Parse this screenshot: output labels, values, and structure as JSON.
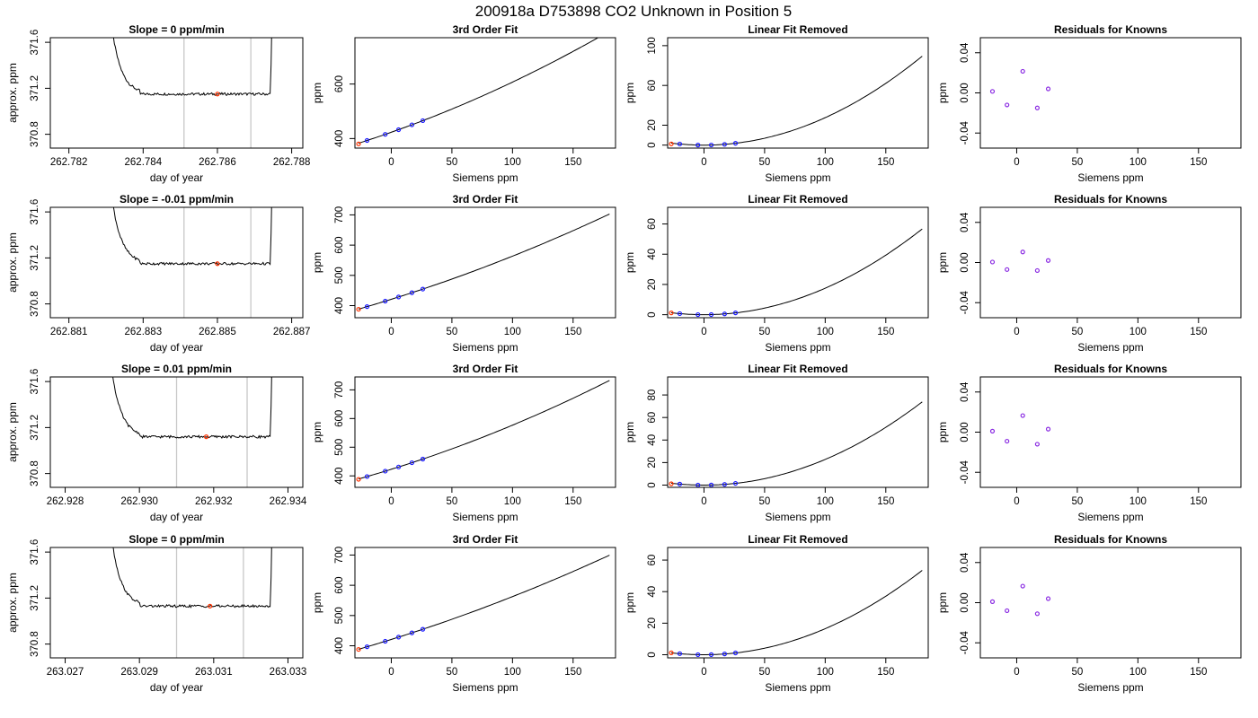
{
  "page_title": "200918a      D753898    CO2 Unknown in Position  5",
  "colors": {
    "known_points": "#1a1aff",
    "unknown_point": "#ff3300",
    "residual_points": "#8a2be2",
    "guide_lines": "#c8c8c8",
    "curve": "#000000"
  },
  "chart_data": [
    {
      "type": "line",
      "row": 1,
      "col": 1,
      "title": "Slope =  0  ppm/min",
      "xlabel": "day of year",
      "ylabel": "approx. ppm",
      "xlim": [
        262.7815,
        262.7883
      ],
      "ylim": [
        370.68,
        371.64
      ],
      "xticks": [
        262.782,
        262.784,
        262.786,
        262.788
      ],
      "xtick_labels": [
        "262.782",
        "262.784",
        "262.786",
        "262.788"
      ],
      "yticks": [
        370.8,
        371.2,
        371.6
      ],
      "ytick_labels": [
        "370.8",
        "371.2",
        "371.6"
      ],
      "data_start": 262.7829,
      "data_end": 262.7875,
      "baseline": 371.15,
      "vlines": [
        262.7851,
        262.7869
      ],
      "marker": {
        "x": 262.786,
        "y": 371.15
      }
    },
    {
      "type": "line",
      "row": 1,
      "col": 2,
      "title": "3rd Order Fit",
      "xlabel": "Siemens ppm",
      "ylabel": "ppm",
      "xlim": [
        -30,
        185
      ],
      "ylim": [
        365,
        770
      ],
      "xticks": [
        0,
        50,
        100,
        150
      ],
      "xtick_labels": [
        "0",
        "50",
        "100",
        "150"
      ],
      "yticks": [
        400,
        600
      ],
      "ytick_labels": [
        "400",
        "600"
      ],
      "fit": {
        "c0": 423.1,
        "c1": 1.563,
        "c2": 0.00276
      },
      "known_x": [
        -20,
        -5,
        6,
        17,
        26
      ],
      "unknown": {
        "x": -27,
        "y": 380.5
      }
    },
    {
      "type": "line",
      "row": 1,
      "col": 3,
      "title": "Linear Fit Removed",
      "xlabel": "Siemens ppm",
      "ylabel": "ppm",
      "xlim": [
        -30,
        185
      ],
      "ylim": [
        -3,
        108
      ],
      "xticks": [
        0,
        50,
        100,
        150
      ],
      "xtick_labels": [
        "0",
        "50",
        "100",
        "150"
      ],
      "yticks": [
        0,
        20,
        60,
        100
      ],
      "ytick_labels": [
        "0",
        "20",
        "60",
        "100"
      ],
      "quad": 0.00276,
      "known_x": [
        -20,
        -5,
        6,
        17,
        26
      ],
      "unknown": {
        "x": -27,
        "y": 1.2
      }
    },
    {
      "type": "scatter",
      "row": 1,
      "col": 4,
      "title": "Residuals for Knowns",
      "xlabel": "Siemens ppm",
      "ylabel": "ppm",
      "xlim": [
        -30,
        185
      ],
      "ylim": [
        -0.055,
        0.055
      ],
      "xticks": [
        0,
        50,
        100,
        150
      ],
      "xtick_labels": [
        "0",
        "50",
        "100",
        "150"
      ],
      "yticks": [
        -0.04,
        0.0,
        0.04
      ],
      "ytick_labels": [
        "-0.04",
        "0.00",
        "0.04"
      ],
      "points": [
        [
          -20,
          0.0015
        ],
        [
          -8,
          -0.012
        ],
        [
          5,
          0.0215
        ],
        [
          17,
          -0.015
        ],
        [
          26,
          0.004
        ]
      ]
    },
    {
      "type": "line",
      "row": 2,
      "col": 1,
      "title": "Slope =  -0.01  ppm/min",
      "xlabel": "day of year",
      "ylabel": "approx. ppm",
      "xlim": [
        262.8805,
        262.8873
      ],
      "ylim": [
        370.68,
        371.64
      ],
      "xticks": [
        262.881,
        262.883,
        262.885,
        262.887
      ],
      "xtick_labels": [
        "262.881",
        "262.883",
        "262.885",
        "262.887"
      ],
      "yticks": [
        370.8,
        371.2,
        371.6
      ],
      "ytick_labels": [
        "370.8",
        "371.2",
        "371.6"
      ],
      "data_start": 262.8819,
      "data_end": 262.8865,
      "baseline": 371.15,
      "vlines": [
        262.8841,
        262.8859
      ],
      "marker": {
        "x": 262.885,
        "y": 371.15
      }
    },
    {
      "type": "line",
      "row": 2,
      "col": 2,
      "title": "3rd Order Fit",
      "xlabel": "Siemens ppm",
      "ylabel": "ppm",
      "xlim": [
        -30,
        185
      ],
      "ylim": [
        360,
        725
      ],
      "xticks": [
        0,
        50,
        100,
        150
      ],
      "xtick_labels": [
        "0",
        "50",
        "100",
        "150"
      ],
      "yticks": [
        400,
        500,
        600,
        700
      ],
      "ytick_labels": [
        "400",
        "500",
        "600",
        "700"
      ],
      "fit": {
        "c0": 421.0,
        "c1": 1.25,
        "c2": 0.00175
      },
      "known_x": [
        -20,
        -5,
        6,
        17,
        26
      ],
      "unknown": {
        "x": -27,
        "y": 388.0
      }
    },
    {
      "type": "line",
      "row": 2,
      "col": 3,
      "title": "Linear Fit Removed",
      "xlabel": "Siemens ppm",
      "ylabel": "ppm",
      "xlim": [
        -30,
        185
      ],
      "ylim": [
        -2,
        71
      ],
      "xticks": [
        0,
        50,
        100,
        150
      ],
      "xtick_labels": [
        "0",
        "50",
        "100",
        "150"
      ],
      "yticks": [
        0,
        20,
        40,
        60
      ],
      "ytick_labels": [
        "0",
        "20",
        "40",
        "60"
      ],
      "quad": 0.00175,
      "known_x": [
        -20,
        -5,
        6,
        17,
        26
      ],
      "unknown": {
        "x": -27,
        "y": 1.2
      }
    },
    {
      "type": "scatter",
      "row": 2,
      "col": 4,
      "title": "Residuals for Knowns",
      "xlabel": "Siemens ppm",
      "ylabel": "ppm",
      "xlim": [
        -30,
        185
      ],
      "ylim": [
        -0.055,
        0.055
      ],
      "xticks": [
        0,
        50,
        100,
        150
      ],
      "xtick_labels": [
        "0",
        "50",
        "100",
        "150"
      ],
      "yticks": [
        -0.04,
        0.0,
        0.04
      ],
      "ytick_labels": [
        "-0.04",
        "0.00",
        "0.04"
      ],
      "points": [
        [
          -20,
          0.0005
        ],
        [
          -8,
          -0.007
        ],
        [
          5,
          0.0105
        ],
        [
          17,
          -0.008
        ],
        [
          26,
          0.002
        ]
      ]
    },
    {
      "type": "line",
      "row": 3,
      "col": 1,
      "title": "Slope =  0.01  ppm/min",
      "xlabel": "day of year",
      "ylabel": "approx. ppm",
      "xlim": [
        262.9276,
        262.9344
      ],
      "ylim": [
        370.68,
        371.64
      ],
      "xticks": [
        262.928,
        262.93,
        262.932,
        262.934
      ],
      "xtick_labels": [
        "262.928",
        "262.930",
        "262.932",
        "262.934"
      ],
      "yticks": [
        370.8,
        371.2,
        371.6
      ],
      "ytick_labels": [
        "370.8",
        "371.2",
        "371.6"
      ],
      "data_start": 262.929,
      "data_end": 262.9336,
      "baseline": 371.12,
      "vlines": [
        262.931,
        262.9329
      ],
      "marker": {
        "x": 262.9318,
        "y": 371.12
      }
    },
    {
      "type": "line",
      "row": 3,
      "col": 2,
      "title": "3rd Order Fit",
      "xlabel": "Siemens ppm",
      "ylabel": "ppm",
      "xlim": [
        -30,
        185
      ],
      "ylim": [
        360,
        745
      ],
      "xticks": [
        0,
        50,
        100,
        150
      ],
      "xtick_labels": [
        "0",
        "50",
        "100",
        "150"
      ],
      "yticks": [
        400,
        500,
        600,
        700
      ],
      "ytick_labels": [
        "400",
        "500",
        "600",
        "700"
      ],
      "fit": {
        "c0": 423.0,
        "c1": 1.31,
        "c2": 0.00228
      },
      "known_x": [
        -20,
        -5,
        6,
        17,
        26
      ],
      "unknown": {
        "x": -27,
        "y": 388.0
      }
    },
    {
      "type": "line",
      "row": 3,
      "col": 3,
      "title": "Linear Fit Removed",
      "xlabel": "Siemens ppm",
      "ylabel": "ppm",
      "xlim": [
        -30,
        185
      ],
      "ylim": [
        -2,
        96
      ],
      "xticks": [
        0,
        50,
        100,
        150
      ],
      "xtick_labels": [
        "0",
        "50",
        "100",
        "150"
      ],
      "yticks": [
        0,
        20,
        40,
        60,
        80
      ],
      "ytick_labels": [
        "0",
        "20",
        "40",
        "60",
        "80"
      ],
      "quad": 0.00228,
      "known_x": [
        -20,
        -5,
        6,
        17,
        26
      ],
      "unknown": {
        "x": -27,
        "y": 1.2
      }
    },
    {
      "type": "scatter",
      "row": 3,
      "col": 4,
      "title": "Residuals for Knowns",
      "xlabel": "Siemens ppm",
      "ylabel": "ppm",
      "xlim": [
        -30,
        185
      ],
      "ylim": [
        -0.055,
        0.055
      ],
      "xticks": [
        0,
        50,
        100,
        150
      ],
      "xtick_labels": [
        "0",
        "50",
        "100",
        "150"
      ],
      "yticks": [
        -0.04,
        0.0,
        0.04
      ],
      "ytick_labels": [
        "-0.04",
        "0.00",
        "0.04"
      ],
      "points": [
        [
          -20,
          0.001
        ],
        [
          -8,
          -0.009
        ],
        [
          5,
          0.0165
        ],
        [
          17,
          -0.012
        ],
        [
          26,
          0.003
        ]
      ]
    },
    {
      "type": "line",
      "row": 4,
      "col": 1,
      "title": "Slope =  0  ppm/min",
      "xlabel": "day of year",
      "ylabel": "approx. ppm",
      "xlim": [
        263.0266,
        263.0334
      ],
      "ylim": [
        370.68,
        371.64
      ],
      "xticks": [
        263.027,
        263.029,
        263.031,
        263.033
      ],
      "xtick_labels": [
        "263.027",
        "263.029",
        "263.031",
        "263.033"
      ],
      "yticks": [
        370.8,
        371.2,
        371.6
      ],
      "ytick_labels": [
        "370.8",
        "371.2",
        "371.6"
      ],
      "data_start": 263.028,
      "data_end": 263.0326,
      "baseline": 371.13,
      "vlines": [
        263.03,
        263.0318
      ],
      "marker": {
        "x": 263.0309,
        "y": 371.13
      }
    },
    {
      "type": "line",
      "row": 4,
      "col": 2,
      "title": "3rd Order Fit",
      "xlabel": "Siemens ppm",
      "ylabel": "ppm",
      "xlim": [
        -30,
        185
      ],
      "ylim": [
        360,
        725
      ],
      "xticks": [
        0,
        50,
        100,
        150
      ],
      "xtick_labels": [
        "0",
        "50",
        "100",
        "150"
      ],
      "yticks": [
        400,
        500,
        600,
        700
      ],
      "ytick_labels": [
        "400",
        "500",
        "600",
        "700"
      ],
      "fit": {
        "c0": 421.0,
        "c1": 1.25,
        "c2": 0.00165
      },
      "known_x": [
        -20,
        -5,
        6,
        17,
        26
      ],
      "unknown": {
        "x": -27,
        "y": 388.0
      }
    },
    {
      "type": "line",
      "row": 4,
      "col": 3,
      "title": "Linear Fit Removed",
      "xlabel": "Siemens ppm",
      "ylabel": "ppm",
      "xlim": [
        -30,
        185
      ],
      "ylim": [
        -2,
        68
      ],
      "xticks": [
        0,
        50,
        100,
        150
      ],
      "xtick_labels": [
        "0",
        "50",
        "100",
        "150"
      ],
      "yticks": [
        0,
        20,
        40,
        60
      ],
      "ytick_labels": [
        "0",
        "20",
        "40",
        "60"
      ],
      "quad": 0.00165,
      "known_x": [
        -20,
        -5,
        6,
        17,
        26
      ],
      "unknown": {
        "x": -27,
        "y": 1.2
      }
    },
    {
      "type": "scatter",
      "row": 4,
      "col": 4,
      "title": "Residuals for Knowns",
      "xlabel": "Siemens ppm",
      "ylabel": "ppm",
      "xlim": [
        -30,
        185
      ],
      "ylim": [
        -0.055,
        0.055
      ],
      "xticks": [
        0,
        50,
        100,
        150
      ],
      "xtick_labels": [
        "0",
        "50",
        "100",
        "150"
      ],
      "yticks": [
        -0.04,
        0.0,
        0.04
      ],
      "ytick_labels": [
        "-0.04",
        "0.00",
        "0.04"
      ],
      "points": [
        [
          -20,
          0.001
        ],
        [
          -8,
          -0.008
        ],
        [
          5,
          0.0165
        ],
        [
          17,
          -0.011
        ],
        [
          26,
          0.004
        ]
      ]
    }
  ]
}
